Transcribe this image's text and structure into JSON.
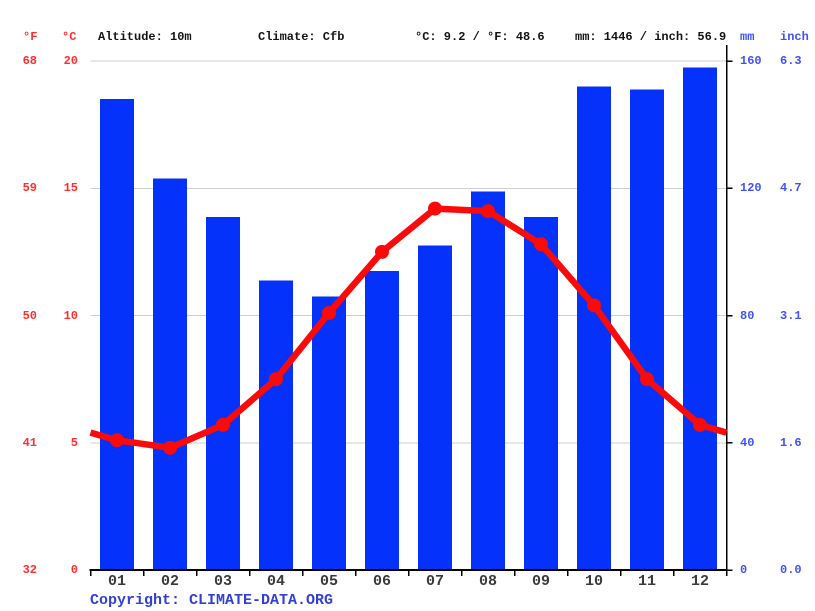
{
  "header": {
    "f_label": "°F",
    "c_label": "°C",
    "altitude": "Altitude: 10m",
    "climate": "Climate: Cfb",
    "temp_summary": "°C: 9.2 / °F: 48.6",
    "precip_summary": "mm: 1446 / inch: 56.9",
    "mm_label": "mm",
    "inch_label": "inch"
  },
  "axes": {
    "left": {
      "fahrenheit_ticks": [
        "68",
        "59",
        "50",
        "41",
        "32"
      ],
      "celsius_ticks": [
        "20",
        "15",
        "10",
        "5",
        "0"
      ],
      "celsius_values": [
        20,
        15,
        10,
        5,
        0
      ]
    },
    "right": {
      "mm_ticks": [
        "160",
        "120",
        "80",
        "40",
        "0"
      ],
      "inch_ticks": [
        "6.3",
        "4.7",
        "3.1",
        "1.6",
        "0.0"
      ],
      "mm_values": [
        160,
        120,
        80,
        40,
        0
      ]
    }
  },
  "chart_data": {
    "type": "bar+line",
    "categories": [
      "01",
      "02",
      "03",
      "04",
      "05",
      "06",
      "07",
      "08",
      "09",
      "10",
      "11",
      "12"
    ],
    "series": [
      {
        "name": "precipitation_mm",
        "type": "bar",
        "values": [
          148,
          123,
          111,
          91,
          86,
          94,
          102,
          119,
          111,
          152,
          151,
          158
        ]
      },
      {
        "name": "temperature_c",
        "type": "line",
        "values": [
          5.1,
          4.8,
          5.7,
          7.5,
          10.1,
          12.5,
          14.2,
          14.1,
          12.8,
          10.4,
          7.5,
          5.7
        ]
      }
    ],
    "temp_axis": {
      "min": 0,
      "max": 20,
      "gridline_values": [
        5,
        10,
        15,
        20
      ]
    },
    "precip_axis": {
      "min": 0,
      "max": 160
    },
    "grid": true,
    "legend": "none",
    "title": ""
  },
  "footer": {
    "prefix": "Copyright: ",
    "link": "CLIMATE-DATA.ORG"
  },
  "colors": {
    "bar": "#0432fa",
    "line": "#fa0a0a",
    "red_text": "#ff2f2f",
    "blue_text": "#4052f4",
    "copyright_text": "#3240d8",
    "grid": "#cfcfcf",
    "axis": "#000000",
    "month_text": "#3a3a3a"
  }
}
